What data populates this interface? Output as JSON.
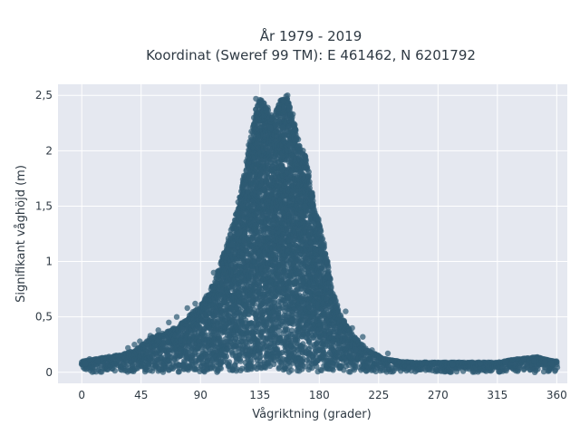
{
  "chart_data": {
    "type": "scatter",
    "title": "År 1979 - 2019",
    "subtitle": "Koordinat (Sweref 99 TM): E 461462, N 6201792",
    "xlabel": "Vågriktning (grader)",
    "ylabel": "Signifikant våghöjd (m)",
    "xlim": [
      -18,
      368
    ],
    "ylim": [
      -0.1,
      2.6
    ],
    "xticks": [
      0,
      45,
      90,
      135,
      180,
      225,
      270,
      315,
      360
    ],
    "xtick_labels": [
      "0",
      "45",
      "90",
      "135",
      "180",
      "225",
      "270",
      "315",
      "360"
    ],
    "yticks": [
      0,
      0.5,
      1,
      1.5,
      2,
      2.5
    ],
    "ytick_labels": [
      "0",
      "0,5",
      "1",
      "1,5",
      "2",
      "2,5"
    ],
    "grid": true,
    "point_color": "#2e5a73",
    "background": "#e5e8f0",
    "envelope": {
      "x": [
        0,
        10,
        20,
        30,
        40,
        45,
        50,
        60,
        70,
        80,
        90,
        100,
        110,
        115,
        120,
        125,
        130,
        135,
        140,
        145,
        150,
        155,
        160,
        165,
        170,
        175,
        180,
        185,
        190,
        195,
        200,
        205,
        210,
        215,
        220,
        225,
        230,
        240,
        250,
        270,
        290,
        315,
        330,
        345,
        360
      ],
      "y_max": [
        0.1,
        0.12,
        0.14,
        0.16,
        0.2,
        0.24,
        0.3,
        0.35,
        0.4,
        0.5,
        0.6,
        0.8,
        1.15,
        1.35,
        1.6,
        1.9,
        2.3,
        2.47,
        2.4,
        2.3,
        2.45,
        2.5,
        2.3,
        2.05,
        1.95,
        1.6,
        1.35,
        1.1,
        0.75,
        0.55,
        0.45,
        0.35,
        0.28,
        0.22,
        0.18,
        0.15,
        0.12,
        0.1,
        0.09,
        0.09,
        0.09,
        0.09,
        0.12,
        0.14,
        0.1
      ]
    },
    "points": [
      [
        132,
        2.47
      ],
      [
        138,
        2.43
      ],
      [
        141,
        2.39
      ],
      [
        149,
        2.38
      ],
      [
        153,
        2.45
      ],
      [
        156,
        2.5
      ],
      [
        160,
        2.33
      ],
      [
        147,
        2.23
      ],
      [
        143,
        2.21
      ],
      [
        152,
        2.21
      ],
      [
        162,
        2.19
      ],
      [
        158,
        2.05
      ],
      [
        171,
        1.83
      ],
      [
        169,
        1.5
      ],
      [
        180,
        1.25
      ],
      [
        114,
        1.15
      ],
      [
        118,
        1.25
      ],
      [
        111,
        1.1
      ],
      [
        100,
        0.9
      ],
      [
        98,
        0.75
      ],
      [
        86,
        0.62
      ],
      [
        80,
        0.58
      ],
      [
        72,
        0.5
      ],
      [
        66,
        0.45
      ],
      [
        58,
        0.38
      ],
      [
        52,
        0.33
      ],
      [
        44,
        0.28
      ],
      [
        40,
        0.25
      ],
      [
        35,
        0.22
      ],
      [
        200,
        0.55
      ],
      [
        205,
        0.4
      ],
      [
        213,
        0.32
      ],
      [
        220,
        0.2
      ],
      [
        232,
        0.17
      ],
      [
        302,
        0.08
      ],
      [
        321,
        0.09
      ],
      [
        335,
        0.12
      ],
      [
        343,
        0.1
      ],
      [
        351,
        0.09
      ],
      [
        356,
        0.08
      ],
      [
        1,
        0.1
      ],
      [
        3,
        0.08
      ],
      [
        6,
        0.12
      ],
      [
        12,
        0.1
      ],
      [
        258,
        0.08
      ],
      [
        281,
        0.07
      ]
    ]
  }
}
